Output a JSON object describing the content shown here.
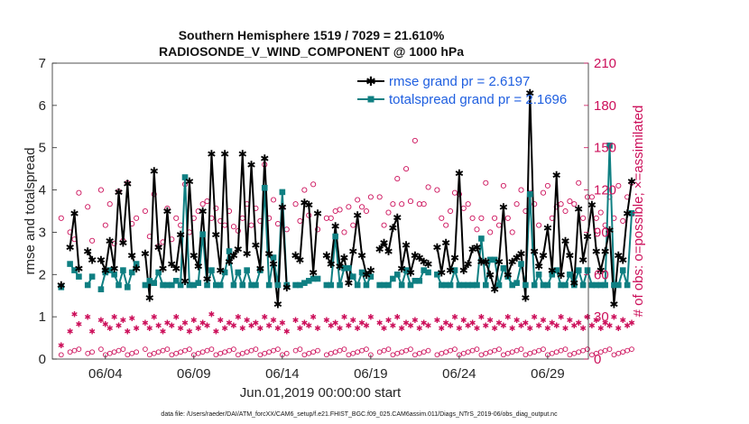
{
  "chart_data": {
    "type": "line",
    "title": "Southern Hemisphere 1519 / 7029 = 21.610%",
    "subtitle": "RADIOSONDE_V_WIND_COMPONENT @ 1000 hPa",
    "xlabel": "Jun.01,2019 00:00:00 start",
    "ylabel": "rmse and totalspread",
    "ylabel_right": "# of obs: o=possible; ×=assimilated",
    "footnote": "data file: /Users/raeder/DAI/ATM_forcXX/CAM6_setup/f.e21.FHIST_BGC.f09_025.CAM6assim.011/Diags_NTrS_2019-06/obs_diag_output.nc",
    "xlim": [
      0.5,
      30.8
    ],
    "ylim": [
      0,
      7
    ],
    "ylim_right": [
      0,
      210
    ],
    "xticks": [
      3.5,
      8.5,
      13.5,
      18.5,
      23.5,
      28.5
    ],
    "xtick_labels": [
      "06/04",
      "06/09",
      "06/14",
      "06/19",
      "06/24",
      "06/29"
    ],
    "yticks": [
      0,
      1,
      2,
      3,
      4,
      5,
      6,
      7
    ],
    "ytick_labels": [
      "0",
      "1",
      "2",
      "3",
      "4",
      "5",
      "6",
      "7"
    ],
    "yticks_right": [
      0,
      30,
      60,
      90,
      120,
      150,
      180,
      210
    ],
    "ytick_labels_right": [
      "0",
      "30",
      "60",
      "90",
      "120",
      "150",
      "180",
      "210"
    ],
    "legend": [
      "rmse grand pr = 2.6197",
      "totalspread grand pr = 2.1696"
    ],
    "legend_position": "top-right",
    "colors": {
      "rmse": "#000000",
      "spread": "#0f7f82",
      "obs": "#cc0f5a"
    },
    "series": [
      {
        "name": "rmse",
        "values": [
          1.75,
          null,
          2.65,
          3.45,
          2.15,
          null,
          2.55,
          2.35,
          null,
          2.35,
          2.1,
          2.8,
          2.15,
          3.95,
          2.75,
          4.15,
          2.45,
          2.15,
          null,
          2.5,
          1.45,
          4.45,
          2.65,
          2.15,
          3.5,
          2.25,
          2.15,
          2.95,
          1.85,
          4.2,
          2.45,
          2.2,
          3.5,
          1.9,
          4.85,
          2.95,
          2.1,
          4.85,
          2.3,
          2.45,
          2.6,
          4.85,
          2.5,
          4.6,
          2.7,
          2.15,
          4.75,
          2.5,
          2.25,
          1.3,
          3.6,
          1.7,
          null,
          2.45,
          2.35,
          3.7,
          3.65,
          2.05,
          3.45,
          null,
          2.45,
          2.25,
          3.15,
          2.2,
          2.4,
          1.8,
          2.55,
          3.4,
          2.45,
          2.0,
          2.1,
          null,
          2.6,
          2.75,
          2.55,
          3.1,
          3.35,
          2.15,
          2.7,
          2.05,
          2.45,
          2.4,
          2.3,
          2.25,
          null,
          2.65,
          2.05,
          2.75,
          2.1,
          2.4,
          4.4,
          2.1,
          2.25,
          2.6,
          2.65,
          2.3,
          2.3,
          2.0,
          1.65,
          2.3,
          3.6,
          2.0,
          2.3,
          2.4,
          2.5,
          1.45,
          6.3,
          2.55,
          2.2,
          2.45,
          3.1,
          2.1,
          4.35,
          2.0,
          2.8,
          2.45,
          1.8,
          3.55,
          2.35,
          2.9,
          3.65,
          2.55,
          2.1,
          2.55,
          3.05,
          1.3,
          2.45,
          2.35,
          3.45,
          4.2
        ]
      },
      {
        "name": "totalspread",
        "values": [
          1.7,
          null,
          2.25,
          2.1,
          1.95,
          null,
          1.75,
          1.95,
          null,
          1.65,
          2.05,
          2.1,
          2.0,
          1.75,
          2.1,
          1.7,
          2.05,
          2.25,
          null,
          1.75,
          1.85,
          1.8,
          2.05,
          1.75,
          1.75,
          1.75,
          1.85,
          1.75,
          4.3,
          1.75,
          1.75,
          1.8,
          2.95,
          1.75,
          2.1,
          1.75,
          1.75,
          2.05,
          2.55,
          1.75,
          2.05,
          1.75,
          2.1,
          1.75,
          1.75,
          2.1,
          4.05,
          1.75,
          2.4,
          1.75,
          3.95,
          1.75,
          null,
          1.75,
          1.75,
          1.8,
          1.85,
          1.9,
          1.9,
          null,
          1.75,
          1.75,
          2.9,
          1.75,
          2.15,
          2.15,
          1.95,
          1.75,
          2.05,
          1.75,
          1.95,
          null,
          1.75,
          1.75,
          1.75,
          1.9,
          2.0,
          1.75,
          2.1,
          1.75,
          1.85,
          1.85,
          2.1,
          2.05,
          null,
          2.0,
          1.75,
          1.75,
          1.75,
          2.1,
          1.75,
          1.75,
          1.75,
          1.75,
          1.75,
          2.85,
          1.75,
          2.35,
          2.35,
          1.75,
          2.15,
          1.95,
          1.75,
          1.8,
          2.25,
          1.75,
          3.9,
          1.75,
          2.0,
          1.75,
          1.75,
          2.0,
          2.1,
          1.75,
          1.75,
          2.0,
          1.75,
          2.1,
          1.75,
          2.1,
          1.75,
          1.75,
          1.75,
          1.75,
          5.05,
          1.75,
          1.75,
          2.1,
          1.75,
          3.45
        ]
      },
      {
        "name": "obs_possible",
        "values": [
          100,
          null,
          90,
          85,
          118,
          null,
          108,
          84,
          null,
          120,
          95,
          110,
          82,
          119,
          84,
          125,
          96,
          100,
          null,
          105,
          87,
          117,
          80,
          83,
          107,
          85,
          100,
          95,
          124,
          90,
          100,
          105,
          110,
          112,
          100,
          107,
          98,
          95,
          105,
          94,
          91,
          100,
          110,
          95,
          107,
          98,
          138,
          100,
          113,
          96,
          107,
          92,
          null,
          110,
          98,
          120,
          102,
          124,
          92,
          null,
          100,
          100,
          105,
          106,
          90,
          108,
          95,
          113,
          108,
          105,
          115,
          null,
          115,
          95,
          104,
          110,
          128,
          110,
          135,
          112,
          155,
          110,
          110,
          122,
          null,
          120,
          100,
          95,
          105,
          118,
          117,
          107,
          110,
          100,
          92,
          100,
          125,
          90,
          100,
          95,
          123,
          100,
          90,
          110,
          120,
          105,
          118,
          110,
          95,
          118,
          123,
          100,
          108,
          110,
          105,
          112,
          110,
          125,
          100,
          115,
          115,
          100,
          104,
          95,
          115,
          100,
          123,
          98,
          115,
          125
        ]
      },
      {
        "name": "obs_assimilated",
        "values": [
          10,
          null,
          20,
          32,
          25,
          null,
          30,
          20,
          null,
          28,
          25,
          22,
          30,
          24,
          28,
          20,
          29,
          22,
          null,
          26,
          22,
          30,
          24,
          20,
          26,
          24,
          30,
          22,
          26,
          20,
          28,
          22,
          26,
          24,
          32,
          20,
          28,
          22,
          26,
          24,
          30,
          22,
          28,
          24,
          26,
          22,
          30,
          24,
          28,
          22,
          26,
          20,
          null,
          28,
          22,
          26,
          24,
          30,
          22,
          null,
          28,
          24,
          26,
          22,
          30,
          24,
          28,
          22,
          26,
          24,
          30,
          null,
          26,
          22,
          28,
          24,
          30,
          22,
          26,
          24,
          28,
          22,
          26,
          24,
          null,
          28,
          22,
          26,
          24,
          30,
          22,
          28,
          24,
          26,
          22,
          30,
          24,
          28,
          22,
          26,
          24,
          30,
          22,
          28,
          24,
          26,
          22,
          30,
          24,
          28,
          22,
          26,
          24,
          30,
          22,
          28,
          24,
          26,
          22,
          30,
          24,
          28,
          22,
          26,
          24,
          30,
          22,
          28,
          24,
          26
        ]
      }
    ]
  }
}
